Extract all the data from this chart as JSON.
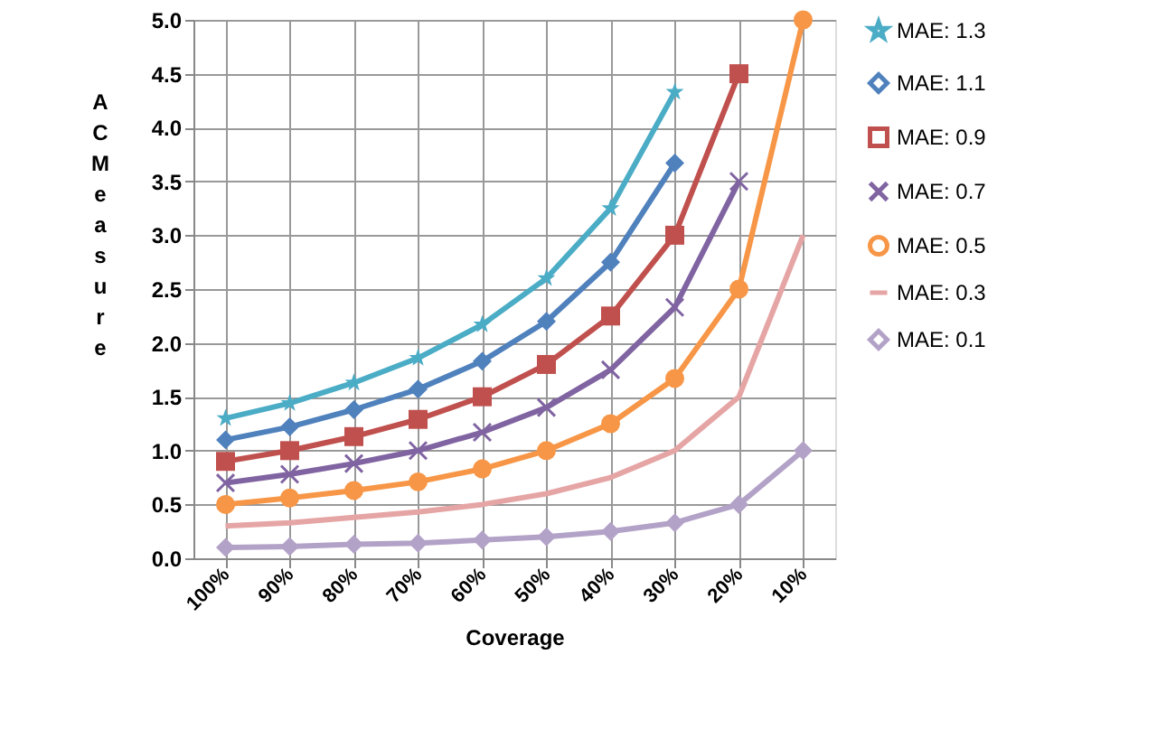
{
  "chart_data": {
    "type": "line",
    "xlabel": "Coverage",
    "ylabel": "AC Measure",
    "categories": [
      "100%",
      "90%",
      "80%",
      "70%",
      "60%",
      "50%",
      "40%",
      "30%",
      "20%",
      "10%"
    ],
    "ylim": [
      0,
      5
    ],
    "yticks": [
      {
        "value": 0,
        "label": "0.0"
      },
      {
        "value": 0.5,
        "label": "0.5"
      },
      {
        "value": 1,
        "label": "1.0"
      },
      {
        "value": 1.5,
        "label": "1.5"
      },
      {
        "value": 2,
        "label": "2.0"
      },
      {
        "value": 2.5,
        "label": "2.5"
      },
      {
        "value": 3,
        "label": "3.0"
      },
      {
        "value": 3.5,
        "label": "3.5"
      },
      {
        "value": 4,
        "label": "4.0"
      },
      {
        "value": 4.5,
        "label": "4.5"
      },
      {
        "value": 5,
        "label": "5.0"
      }
    ],
    "grid": true,
    "legend": "right",
    "series": [
      {
        "name": "MAE: 1.3",
        "color": "#4bacc6",
        "marker": "star",
        "values": [
          1.3,
          1.44,
          1.63,
          1.86,
          2.17,
          2.6,
          3.25,
          4.33,
          null,
          null
        ]
      },
      {
        "name": "MAE: 1.1",
        "color": "#4f81bd",
        "marker": "diamond",
        "values": [
          1.1,
          1.22,
          1.38,
          1.57,
          1.83,
          2.2,
          2.75,
          3.67,
          null,
          null
        ]
      },
      {
        "name": "MAE: 0.9",
        "color": "#c0504d",
        "marker": "square",
        "values": [
          0.9,
          1.0,
          1.13,
          1.29,
          1.5,
          1.8,
          2.25,
          3.0,
          4.5,
          null
        ]
      },
      {
        "name": "MAE: 0.7",
        "color": "#8064a2",
        "marker": "cross",
        "values": [
          0.7,
          0.78,
          0.88,
          1.0,
          1.17,
          1.4,
          1.75,
          2.33,
          3.5,
          null
        ]
      },
      {
        "name": "MAE: 0.5",
        "color": "#f79646",
        "marker": "circle",
        "values": [
          0.5,
          0.56,
          0.63,
          0.71,
          0.83,
          1.0,
          1.25,
          1.67,
          2.5,
          5.0
        ]
      },
      {
        "name": "MAE: 0.3",
        "color": "#e6a5a5",
        "marker": "none",
        "values": [
          0.3,
          0.33,
          0.38,
          0.43,
          0.5,
          0.6,
          0.75,
          1.0,
          1.5,
          3.0
        ]
      },
      {
        "name": "MAE: 0.1",
        "color": "#b3a2c7",
        "marker": "diamond",
        "values": [
          0.1,
          0.11,
          0.13,
          0.14,
          0.17,
          0.2,
          0.25,
          0.33,
          0.5,
          1.0
        ]
      }
    ]
  }
}
